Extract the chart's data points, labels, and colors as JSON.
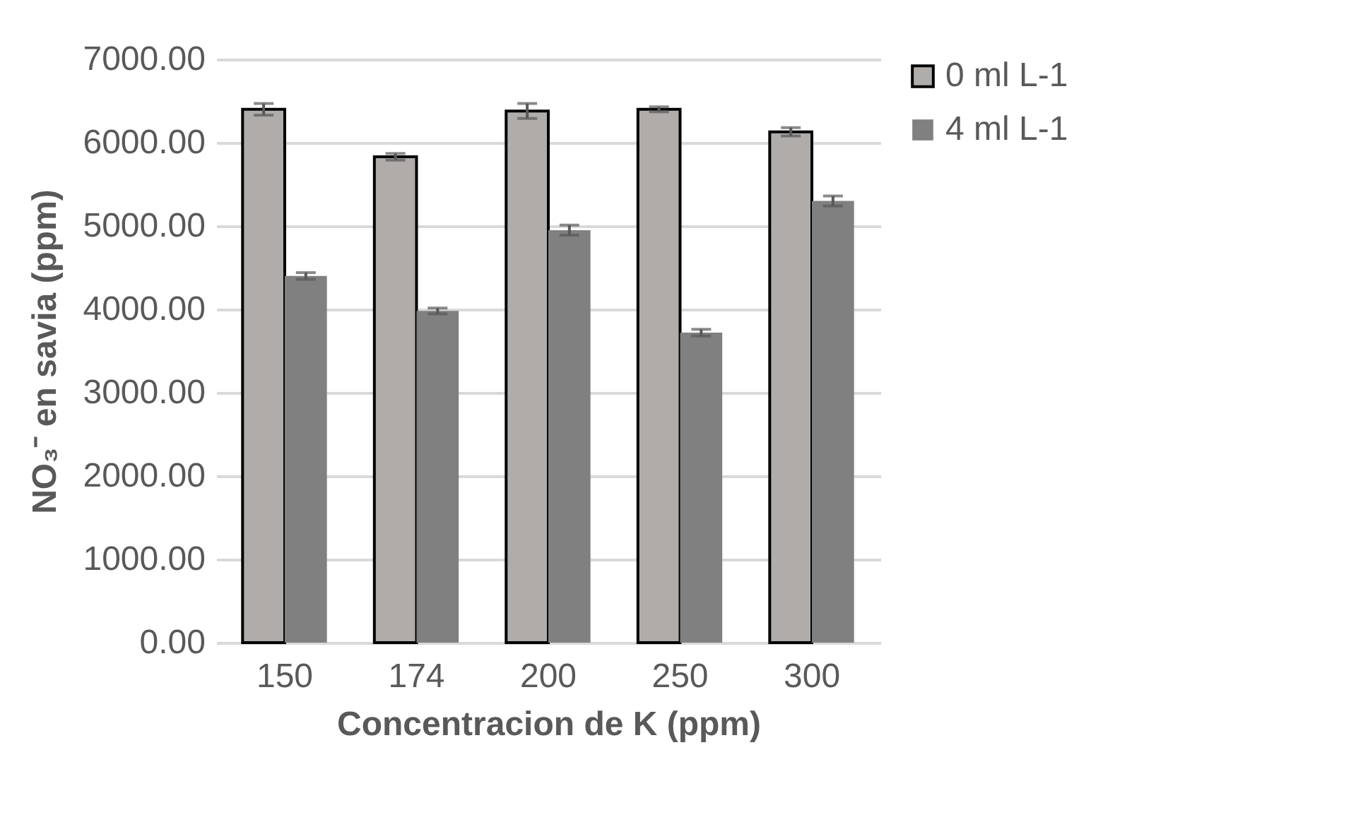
{
  "chart_data": {
    "type": "bar",
    "xlabel": "Concentracion de K (ppm)",
    "ylabel": "NO₃⁻ en savia (ppm)",
    "categories": [
      "150",
      "174",
      "200",
      "250",
      "300"
    ],
    "series": [
      {
        "name": "0 ml L-1",
        "color": "#b0acaa",
        "values": [
          6400,
          5830,
          6380,
          6400,
          6130
        ],
        "errors": [
          70,
          40,
          90,
          30,
          50
        ]
      },
      {
        "name": "4 ml L-1",
        "color": "#808080",
        "values": [
          4400,
          3980,
          4950,
          3720,
          5300
        ],
        "errors": [
          40,
          35,
          60,
          40,
          60
        ]
      }
    ],
    "ylim": [
      0,
      7000
    ],
    "yticks": [
      {
        "value": 0,
        "label": "0.00"
      },
      {
        "value": 1000,
        "label": "1000.00"
      },
      {
        "value": 2000,
        "label": "2000.00"
      },
      {
        "value": 3000,
        "label": "3000.00"
      },
      {
        "value": 4000,
        "label": "4000.00"
      },
      {
        "value": 5000,
        "label": "5000.00"
      },
      {
        "value": 6000,
        "label": "6000.00"
      },
      {
        "value": 7000,
        "label": "7000.00"
      }
    ],
    "grid": "y",
    "legend": "right"
  }
}
